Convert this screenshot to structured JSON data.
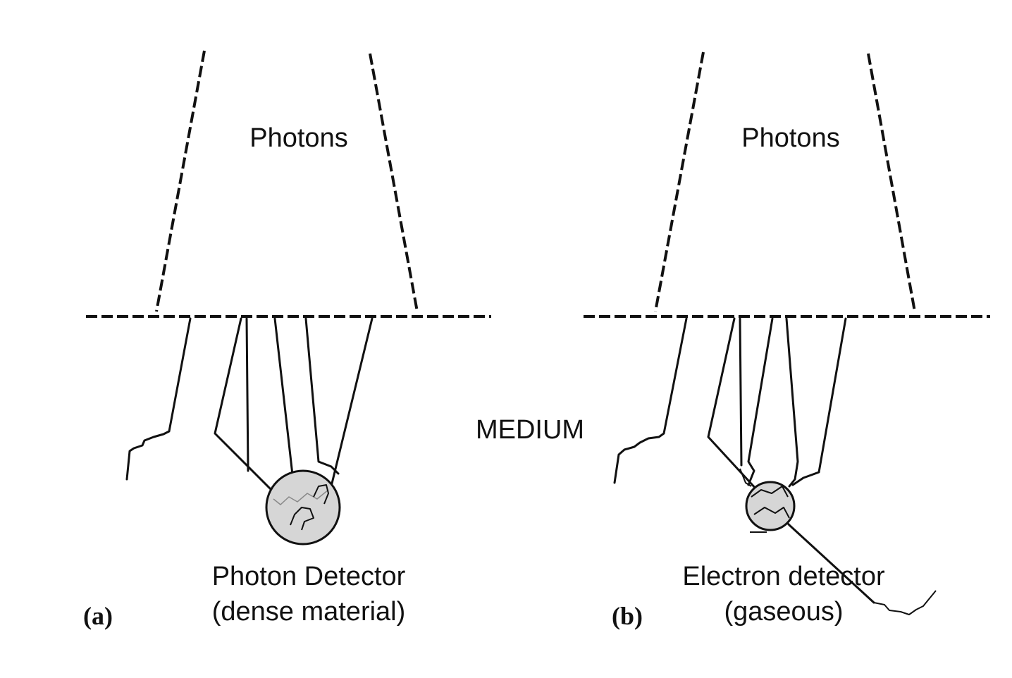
{
  "panel_a": {
    "label": "(a)",
    "photons_label": "Photons",
    "detector_label_line1": "Photon Detector",
    "detector_label_line2": "(dense material)"
  },
  "panel_b": {
    "label": "(b)",
    "photons_label": "Photons",
    "detector_label_line1": "Electron detector",
    "detector_label_line2": "(gaseous)"
  },
  "medium_label": "MEDIUM",
  "colors": {
    "ink": "#111111",
    "detector_fill": "#d6d6d6"
  }
}
